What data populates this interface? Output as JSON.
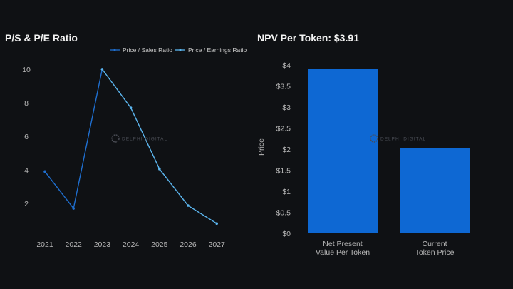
{
  "chart_data": [
    {
      "type": "line",
      "title": "P/S & P/E Ratio",
      "xlabel": "",
      "ylabel": "",
      "x": [
        "2021",
        "2022",
        "2023",
        "2024",
        "2025",
        "2026",
        "2027"
      ],
      "yticks": [
        2,
        4,
        6,
        8,
        10
      ],
      "ylim": [
        0,
        10.5
      ],
      "grid": false,
      "legend_position": "top-right",
      "watermark": "DELPHI DIGITAL",
      "series": [
        {
          "name": "Price / Sales Ratio",
          "color": "#1f6fd0",
          "values": [
            3.9,
            1.7,
            10,
            null,
            null,
            null,
            null
          ]
        },
        {
          "name": "Price / Earnings Ratio",
          "color": "#5cb6ef",
          "values": [
            null,
            null,
            10,
            7.7,
            4.05,
            1.87,
            0.8
          ]
        }
      ]
    },
    {
      "type": "bar",
      "title": "NPV Per Token: $3.91",
      "xlabel": "",
      "ylabel": "Price",
      "categories": [
        [
          "Net Present",
          "Value Per Token"
        ],
        [
          "Current",
          "Token Price"
        ]
      ],
      "values": [
        3.91,
        2.03
      ],
      "color": "#0e68d3",
      "yticks": [
        "$0",
        "$0.5",
        "$1",
        "$1.5",
        "$2",
        "$2.5",
        "$3",
        "$3.5",
        "$4"
      ],
      "ylim": [
        0,
        4
      ],
      "grid": false,
      "watermark": "DELPHI DIGITAL"
    }
  ]
}
